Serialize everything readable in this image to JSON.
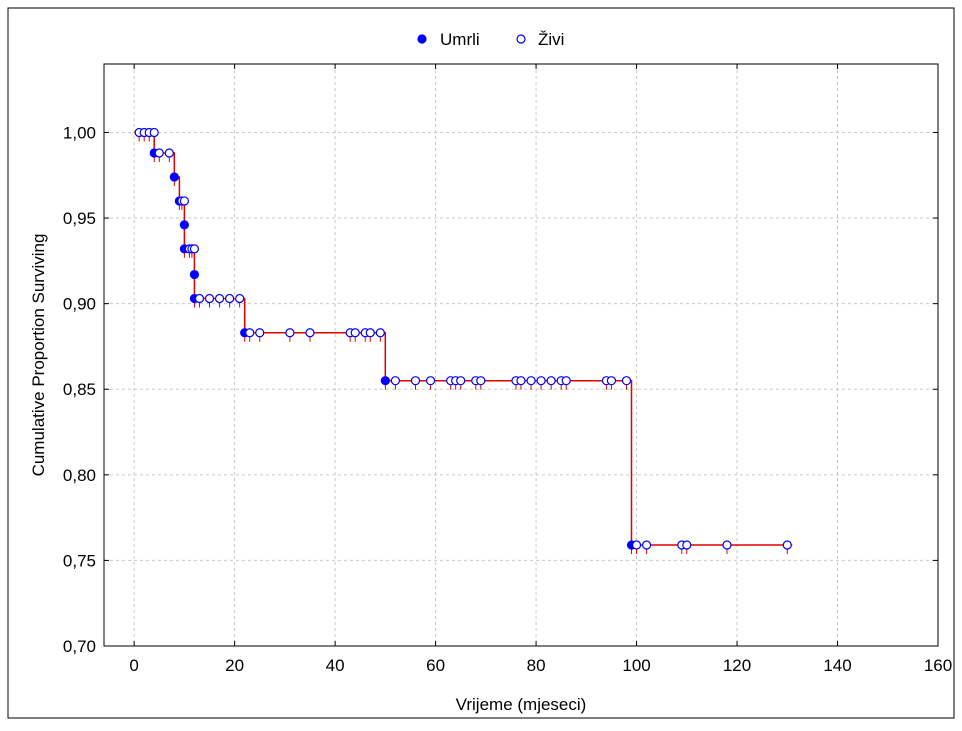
{
  "chart_data": {
    "type": "scatter",
    "title": "",
    "xlabel": "Vrijeme (mjeseci)",
    "ylabel": "Cumulative Proportion Surviving",
    "xlim": [
      -6,
      160
    ],
    "ylim": [
      0.7,
      1.04
    ],
    "x_ticks": [
      0,
      20,
      40,
      60,
      80,
      100,
      120,
      140,
      160
    ],
    "y_ticks": [
      0.7,
      0.75,
      0.8,
      0.85,
      0.9,
      0.95,
      1.0
    ],
    "x_tick_labels": [
      "0",
      "20",
      "40",
      "60",
      "80",
      "100",
      "120",
      "140",
      "160"
    ],
    "y_tick_labels": [
      "0,70",
      "0,75",
      "0,80",
      "0,85",
      "0,90",
      "0,95",
      "1,00"
    ],
    "grid": true,
    "legend": "top",
    "colors": {
      "series": "#0000ff",
      "curve": "#e00000"
    },
    "curve": [
      [
        0,
        1.0
      ],
      [
        4,
        1.0
      ],
      [
        4,
        0.988
      ],
      [
        8,
        0.988
      ],
      [
        8,
        0.974
      ],
      [
        9,
        0.974
      ],
      [
        9,
        0.96
      ],
      [
        10,
        0.96
      ],
      [
        10,
        0.946
      ],
      [
        10,
        0.932
      ],
      [
        12,
        0.932
      ],
      [
        12,
        0.917
      ],
      [
        12,
        0.903
      ],
      [
        22,
        0.903
      ],
      [
        22,
        0.883
      ],
      [
        50,
        0.883
      ],
      [
        50,
        0.855
      ],
      [
        99,
        0.855
      ],
      [
        99,
        0.759
      ],
      [
        131,
        0.759
      ]
    ],
    "series": [
      {
        "name": "Umrli",
        "marker": "filled",
        "points": [
          [
            4,
            0.988
          ],
          [
            8,
            0.974
          ],
          [
            9,
            0.96
          ],
          [
            10,
            0.946
          ],
          [
            10,
            0.932
          ],
          [
            12,
            0.917
          ],
          [
            12,
            0.903
          ],
          [
            22,
            0.883
          ],
          [
            50,
            0.855
          ],
          [
            99,
            0.759
          ]
        ]
      },
      {
        "name": "Živi",
        "marker": "open",
        "points": [
          [
            1,
            1.0
          ],
          [
            2,
            1.0
          ],
          [
            3,
            1.0
          ],
          [
            4,
            1.0
          ],
          [
            5,
            0.988
          ],
          [
            7,
            0.988
          ],
          [
            9.5,
            0.96
          ],
          [
            10,
            0.96
          ],
          [
            11,
            0.932
          ],
          [
            11.5,
            0.932
          ],
          [
            12,
            0.932
          ],
          [
            13,
            0.903
          ],
          [
            15,
            0.903
          ],
          [
            17,
            0.903
          ],
          [
            19,
            0.903
          ],
          [
            21,
            0.903
          ],
          [
            23,
            0.883
          ],
          [
            25,
            0.883
          ],
          [
            31,
            0.883
          ],
          [
            35,
            0.883
          ],
          [
            43,
            0.883
          ],
          [
            44,
            0.883
          ],
          [
            46,
            0.883
          ],
          [
            47,
            0.883
          ],
          [
            49,
            0.883
          ],
          [
            52,
            0.855
          ],
          [
            56,
            0.855
          ],
          [
            59,
            0.855
          ],
          [
            63,
            0.855
          ],
          [
            64,
            0.855
          ],
          [
            65,
            0.855
          ],
          [
            68,
            0.855
          ],
          [
            69,
            0.855
          ],
          [
            76,
            0.855
          ],
          [
            77,
            0.855
          ],
          [
            79,
            0.855
          ],
          [
            81,
            0.855
          ],
          [
            83,
            0.855
          ],
          [
            85,
            0.855
          ],
          [
            86,
            0.855
          ],
          [
            94,
            0.855
          ],
          [
            95,
            0.855
          ],
          [
            98,
            0.855
          ],
          [
            100,
            0.759
          ],
          [
            102,
            0.759
          ],
          [
            109,
            0.759
          ],
          [
            110,
            0.759
          ],
          [
            118,
            0.759
          ],
          [
            130,
            0.759
          ]
        ]
      }
    ]
  }
}
